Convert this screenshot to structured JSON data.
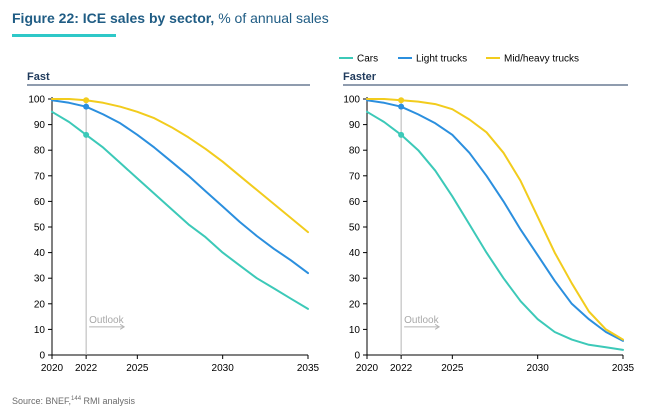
{
  "figure": {
    "title_bold": "Figure 22: ICE sales by sector,",
    "title_rest": " % of annual sales",
    "source_text": "Source: BNEF,",
    "source_sup": "144",
    "source_tail": " RMI analysis"
  },
  "colors": {
    "title": "#1f5c84",
    "accent_rule": "#2ec8c8",
    "panel_title": "#1f3a5c",
    "outlook": "#b4b4b4"
  },
  "chart_data": [
    {
      "type": "line",
      "title": "Fast",
      "xlabel": "",
      "ylabel": "",
      "xlim": [
        2020,
        2035
      ],
      "ylim": [
        0,
        100
      ],
      "x_ticks": [
        2020,
        2022,
        2025,
        2030,
        2035
      ],
      "y_ticks": [
        0,
        10,
        20,
        30,
        40,
        50,
        60,
        70,
        80,
        90,
        100
      ],
      "marker_x": 2022,
      "annotation": "Outlook",
      "series": [
        {
          "name": "Cars",
          "color": "#3cc9b8",
          "x": [
            2020,
            2021,
            2022,
            2023,
            2024,
            2025,
            2026,
            2027,
            2028,
            2029,
            2030,
            2031,
            2032,
            2033,
            2034,
            2035
          ],
          "values": [
            95,
            91,
            86,
            81,
            75,
            69,
            63,
            57,
            51,
            46,
            40,
            35,
            30,
            26,
            22,
            18
          ]
        },
        {
          "name": "Light trucks",
          "color": "#2b8fde",
          "x": [
            2020,
            2021,
            2022,
            2023,
            2024,
            2025,
            2026,
            2027,
            2028,
            2029,
            2030,
            2031,
            2032,
            2033,
            2034,
            2035
          ],
          "values": [
            99.5,
            98.5,
            97,
            94,
            90.5,
            86,
            81,
            75.5,
            70,
            64,
            58,
            52,
            46.5,
            41.5,
            37,
            32
          ]
        },
        {
          "name": "Mid/heavy trucks",
          "color": "#f2cc1d",
          "x": [
            2020,
            2021,
            2022,
            2023,
            2024,
            2025,
            2026,
            2027,
            2028,
            2029,
            2030,
            2031,
            2032,
            2033,
            2034,
            2035
          ],
          "values": [
            100,
            100,
            99.5,
            98.5,
            97,
            95,
            92.5,
            89,
            85,
            80.5,
            75.5,
            70,
            64.5,
            59,
            53.5,
            48
          ]
        }
      ],
      "points_2022": [
        86,
        97,
        99.5
      ]
    },
    {
      "type": "line",
      "title": "Faster",
      "xlabel": "",
      "ylabel": "",
      "xlim": [
        2020,
        2035
      ],
      "ylim": [
        0,
        100
      ],
      "x_ticks": [
        2020,
        2022,
        2025,
        2030,
        2035
      ],
      "y_ticks": [
        0,
        10,
        20,
        30,
        40,
        50,
        60,
        70,
        80,
        90,
        100
      ],
      "marker_x": 2022,
      "annotation": "Outlook",
      "legend_position": "top",
      "series": [
        {
          "name": "Cars",
          "color": "#3cc9b8",
          "x": [
            2020,
            2021,
            2022,
            2023,
            2024,
            2025,
            2026,
            2027,
            2028,
            2029,
            2030,
            2031,
            2032,
            2033,
            2034,
            2035
          ],
          "values": [
            95,
            91,
            86,
            80,
            72,
            62,
            51,
            40,
            30,
            21,
            14,
            9,
            6,
            4,
            3,
            2
          ]
        },
        {
          "name": "Light trucks",
          "color": "#2b8fde",
          "x": [
            2020,
            2021,
            2022,
            2023,
            2024,
            2025,
            2026,
            2027,
            2028,
            2029,
            2030,
            2031,
            2032,
            2033,
            2034,
            2035
          ],
          "values": [
            99.5,
            98.5,
            97,
            94,
            90.5,
            86,
            79,
            70,
            60,
            49,
            39,
            29,
            20,
            14,
            9,
            5.5
          ]
        },
        {
          "name": "Mid/heavy trucks",
          "color": "#f2cc1d",
          "x": [
            2020,
            2021,
            2022,
            2023,
            2024,
            2025,
            2026,
            2027,
            2028,
            2029,
            2030,
            2031,
            2032,
            2033,
            2034,
            2035
          ],
          "values": [
            100,
            100,
            99.5,
            99,
            98,
            96,
            92,
            87,
            79,
            68,
            54,
            40,
            28,
            17,
            10,
            6
          ]
        }
      ],
      "points_2022": [
        86,
        97,
        99.5
      ]
    }
  ]
}
